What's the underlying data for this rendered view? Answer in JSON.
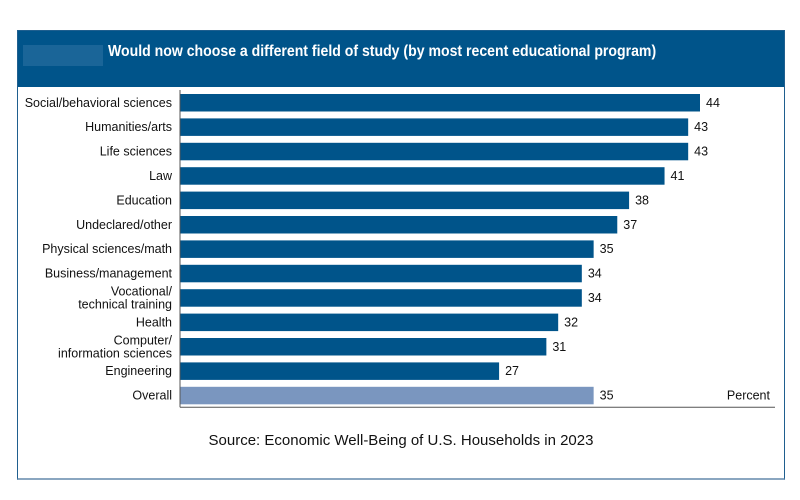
{
  "chart_data": {
    "type": "bar",
    "orientation": "horizontal",
    "title": "Would now choose a different field of study (by most recent educational program)",
    "categories": [
      "Social/behavioral sciences",
      "Humanities/arts",
      "Life sciences",
      "Law",
      "Education",
      "Undeclared/other",
      "Physical sciences/math",
      "Business/management",
      "Vocational/\ntechnical training",
      "Health",
      "Computer/\ninformation sciences",
      "Engineering",
      "Overall"
    ],
    "values": [
      44,
      43,
      43,
      41,
      38,
      37,
      35,
      34,
      34,
      32,
      31,
      27,
      35
    ],
    "unit_label": "Percent",
    "xlim": [
      0,
      44
    ],
    "grid": false,
    "legend": "none",
    "colors": {
      "bar": "#00548a",
      "overall": "#7a96bf",
      "header": "#00548a"
    }
  },
  "source": "Source: Economic Well-Being of U.S. Households in 2023"
}
